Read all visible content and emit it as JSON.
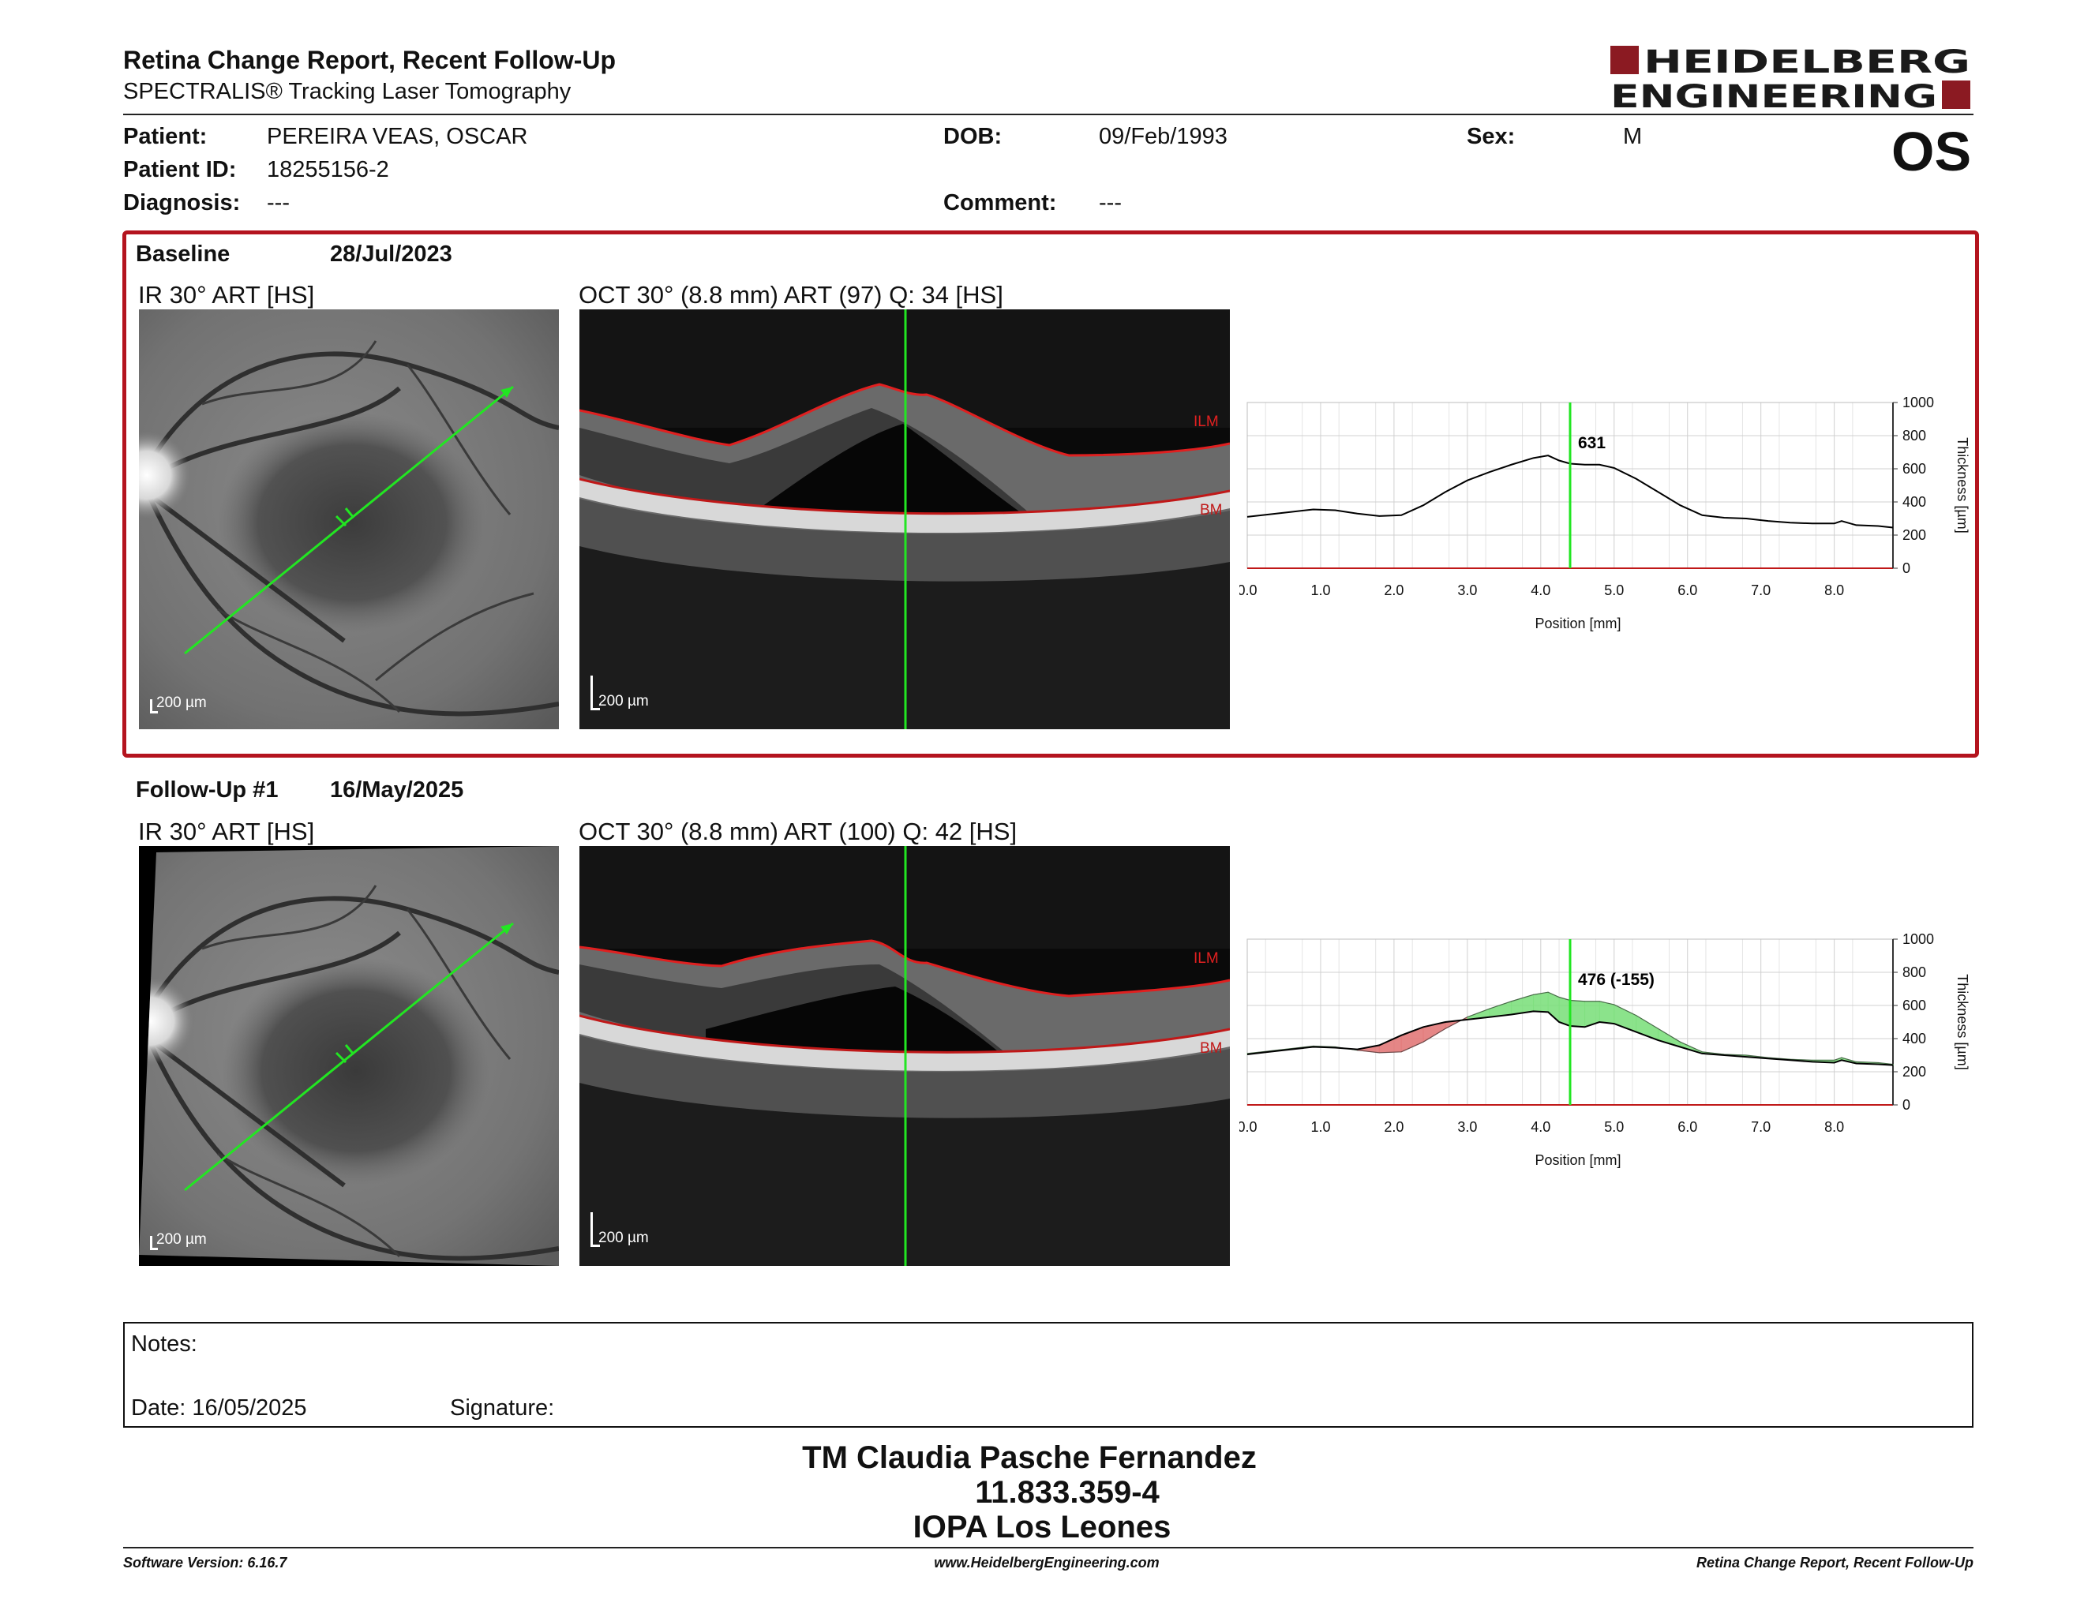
{
  "header": {
    "title": "Retina Change Report, Recent Follow-Up",
    "subtitle": "SPECTRALIS® Tracking Laser Tomography",
    "logo_line1": "HEIDELBERG",
    "logo_line2": "ENGINEERING",
    "eye": "OS"
  },
  "patient": {
    "patient_label": "Patient:",
    "patient_value": "PEREIRA VEAS, OSCAR",
    "id_label": "Patient ID:",
    "id_value": "18255156-2",
    "diagnosis_label": "Diagnosis:",
    "diagnosis_value": "---",
    "dob_label": "DOB:",
    "dob_value": "09/Feb/1993",
    "comment_label": "Comment:",
    "comment_value": "---",
    "sex_label": "Sex:",
    "sex_value": "M"
  },
  "baseline": {
    "label": "Baseline",
    "date": "28/Jul/2023",
    "ir_caption": "IR 30° ART [HS]",
    "oct_caption": "OCT 30° (8.8 mm) ART (97) Q: 34 [HS]",
    "scale": "200 µm",
    "ilm": "ILM",
    "bm": "BM"
  },
  "followup": {
    "label": "Follow-Up #1",
    "date": "16/May/2025",
    "ir_caption": "IR 30° ART [HS]",
    "oct_caption": "OCT 30° (8.8 mm) ART (100) Q: 42 [HS]",
    "scale": "200 µm",
    "ilm": "ILM",
    "bm": "BM"
  },
  "chart_data": [
    {
      "type": "line",
      "xlabel": "Position [mm]",
      "ylabel": "Thickness [µm]",
      "xlim": [
        0,
        8.8
      ],
      "ylim": [
        0,
        1000
      ],
      "xticks": [
        "0.0",
        "1.0",
        "2.0",
        "3.0",
        "4.0",
        "5.0",
        "6.0",
        "7.0",
        "8.0"
      ],
      "yticks": [
        "0",
        "200",
        "400",
        "600",
        "800",
        "1000"
      ],
      "cursor_x": 4.4,
      "cursor_label": "631",
      "grid": true,
      "series": [
        {
          "x": [
            0.0,
            0.3,
            0.6,
            0.9,
            1.2,
            1.5,
            1.8,
            2.1,
            2.4,
            2.7,
            3.0,
            3.3,
            3.6,
            3.9,
            4.1,
            4.25,
            4.4,
            4.6,
            4.8,
            5.0,
            5.3,
            5.6,
            5.9,
            6.2,
            6.5,
            6.8,
            7.1,
            7.4,
            7.7,
            8.0,
            8.1,
            8.3,
            8.6,
            8.8
          ],
          "y": [
            310,
            325,
            340,
            355,
            350,
            330,
            315,
            320,
            380,
            460,
            530,
            580,
            625,
            665,
            680,
            650,
            631,
            625,
            625,
            605,
            540,
            460,
            380,
            320,
            305,
            300,
            285,
            275,
            270,
            270,
            285,
            260,
            255,
            245
          ]
        }
      ]
    },
    {
      "type": "area",
      "xlabel": "Position [mm]",
      "ylabel": "Thickness [µm]",
      "xlim": [
        0,
        8.8
      ],
      "ylim": [
        0,
        1000
      ],
      "xticks": [
        "0.0",
        "1.0",
        "2.0",
        "3.0",
        "4.0",
        "5.0",
        "6.0",
        "7.0",
        "8.0"
      ],
      "yticks": [
        "0",
        "200",
        "400",
        "600",
        "800",
        "1000"
      ],
      "cursor_x": 4.4,
      "cursor_label": "476 (-155)",
      "grid": true,
      "series": [
        {
          "x": [
            0.0,
            0.3,
            0.6,
            0.9,
            1.2,
            1.5,
            1.8,
            2.1,
            2.4,
            2.7,
            3.0,
            3.3,
            3.6,
            3.9,
            4.1,
            4.25,
            4.4,
            4.6,
            4.8,
            5.0,
            5.3,
            5.6,
            5.9,
            6.2,
            6.5,
            6.8,
            7.1,
            7.4,
            7.7,
            8.0,
            8.1,
            8.3,
            8.6,
            8.8
          ],
          "y": [
            310,
            325,
            340,
            355,
            350,
            330,
            315,
            320,
            380,
            460,
            530,
            580,
            625,
            665,
            680,
            650,
            631,
            625,
            625,
            605,
            540,
            460,
            380,
            320,
            305,
            300,
            285,
            275,
            270,
            270,
            285,
            260,
            255,
            245
          ]
        },
        {
          "x": [
            0.0,
            0.3,
            0.6,
            0.9,
            1.2,
            1.5,
            1.8,
            2.1,
            2.4,
            2.7,
            3.0,
            3.3,
            3.6,
            3.9,
            4.1,
            4.25,
            4.4,
            4.6,
            4.8,
            5.0,
            5.3,
            5.6,
            5.9,
            6.2,
            6.5,
            6.8,
            7.1,
            7.4,
            7.7,
            8.0,
            8.1,
            8.3,
            8.6,
            8.8
          ],
          "y": [
            305,
            320,
            335,
            350,
            345,
            335,
            360,
            420,
            470,
            500,
            515,
            530,
            545,
            565,
            560,
            500,
            476,
            470,
            500,
            490,
            440,
            390,
            350,
            310,
            300,
            290,
            280,
            270,
            260,
            255,
            270,
            250,
            245,
            240
          ]
        }
      ]
    }
  ],
  "notes": {
    "notes_label": "Notes:",
    "date_label": "Date: 16/05/2025",
    "signature_label": "Signature:"
  },
  "stamp": {
    "line1": "TM Claudia Pasche Fernandez",
    "line2": "11.833.359-4",
    "line3": "IOPA Los Leones"
  },
  "footer": {
    "left": "Software Version: 6.16.7",
    "center": "www.HeidelbergEngineering.com",
    "right": "Retina Change Report, Recent Follow-Up"
  }
}
